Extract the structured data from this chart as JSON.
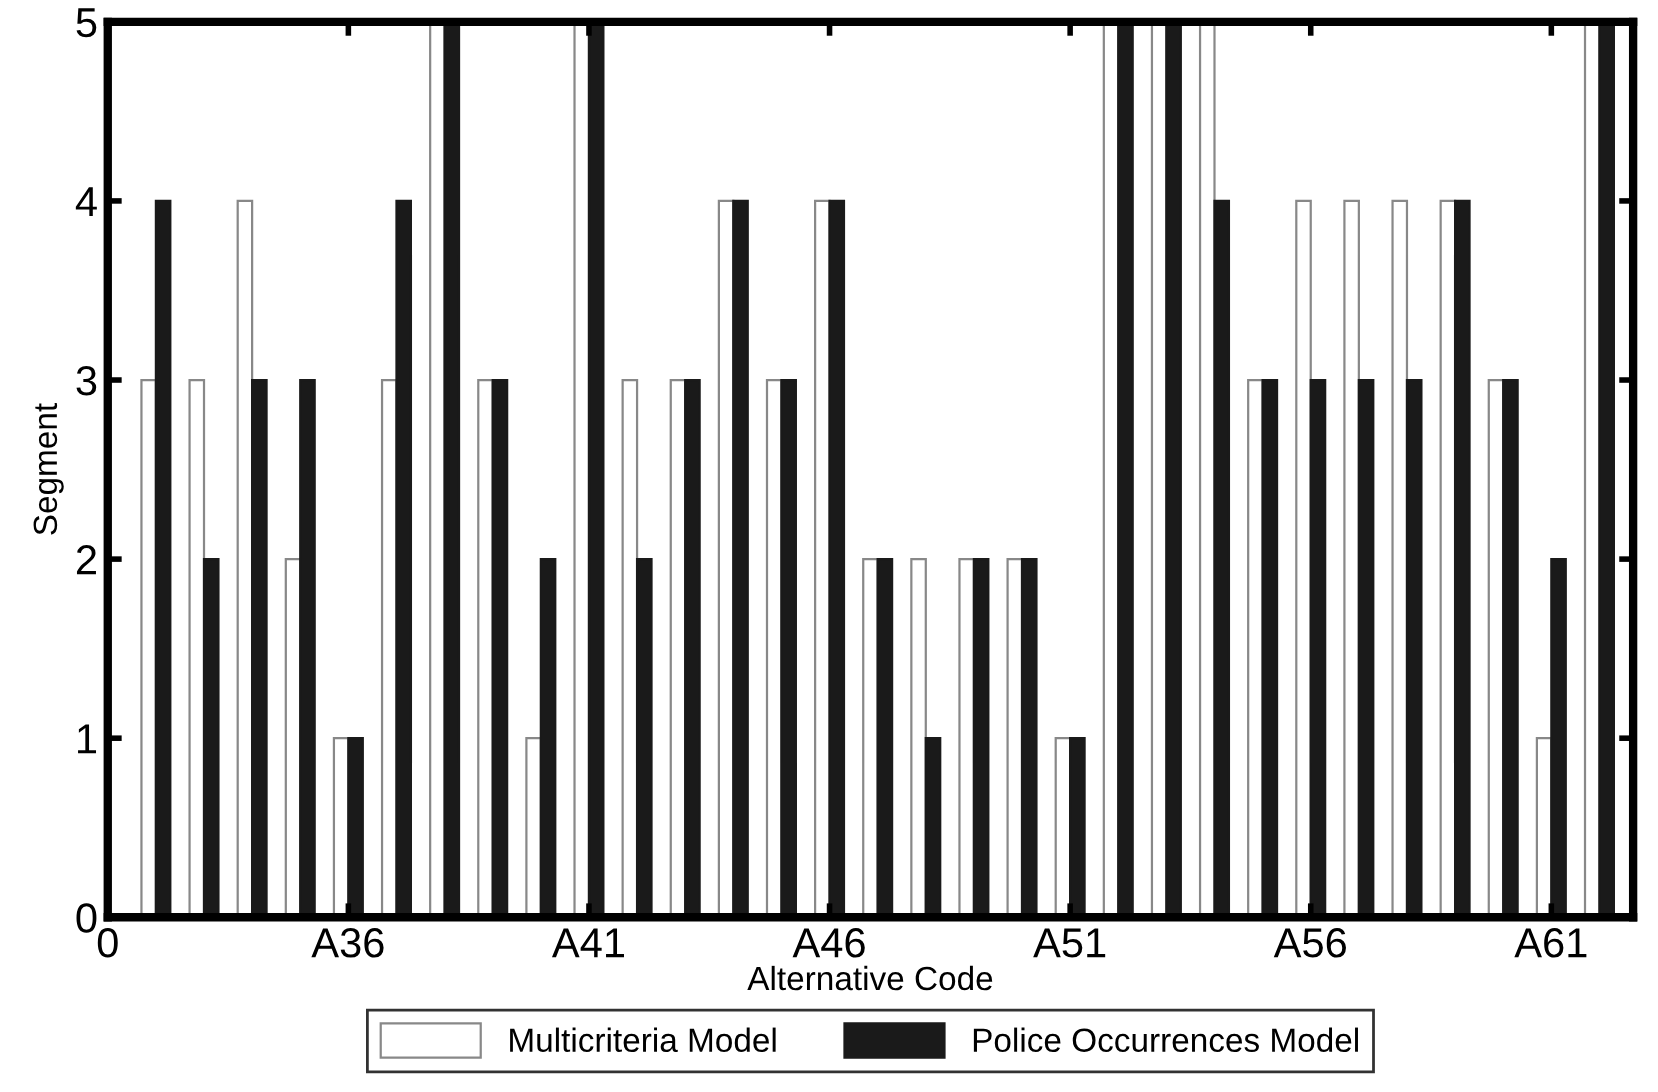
{
  "chart_data": {
    "type": "bar",
    "xlabel": "Alternative Code",
    "ylabel": "Segment",
    "categories": [
      "0",
      null,
      null,
      null,
      null,
      "A36",
      null,
      null,
      null,
      null,
      "A41",
      null,
      null,
      null,
      null,
      "A46",
      null,
      null,
      null,
      null,
      "A51",
      null,
      null,
      null,
      null,
      "A56",
      null,
      null,
      null,
      null,
      "A61",
      null
    ],
    "series": [
      {
        "name": "Multicriteria Model",
        "color": "#ffffff",
        "values": [
          null,
          3,
          3,
          4,
          2,
          1,
          3,
          5,
          3,
          1,
          5,
          3,
          3,
          4,
          3,
          4,
          2,
          2,
          2,
          2,
          1,
          5,
          5,
          5,
          3,
          4,
          4,
          4,
          4,
          3,
          1,
          5
        ]
      },
      {
        "name": "Police Occurrences Model",
        "color": "#1a1a1a",
        "values": [
          null,
          4,
          2,
          3,
          3,
          1,
          4,
          5,
          3,
          2,
          5,
          2,
          3,
          4,
          3,
          4,
          2,
          1,
          2,
          2,
          1,
          5,
          5,
          4,
          3,
          3,
          3,
          3,
          4,
          3,
          2,
          5
        ]
      }
    ],
    "ylim": [
      0,
      5
    ],
    "yticks": [
      0,
      1,
      2,
      3,
      4,
      5
    ],
    "grid": false,
    "legend": "bottom"
  }
}
